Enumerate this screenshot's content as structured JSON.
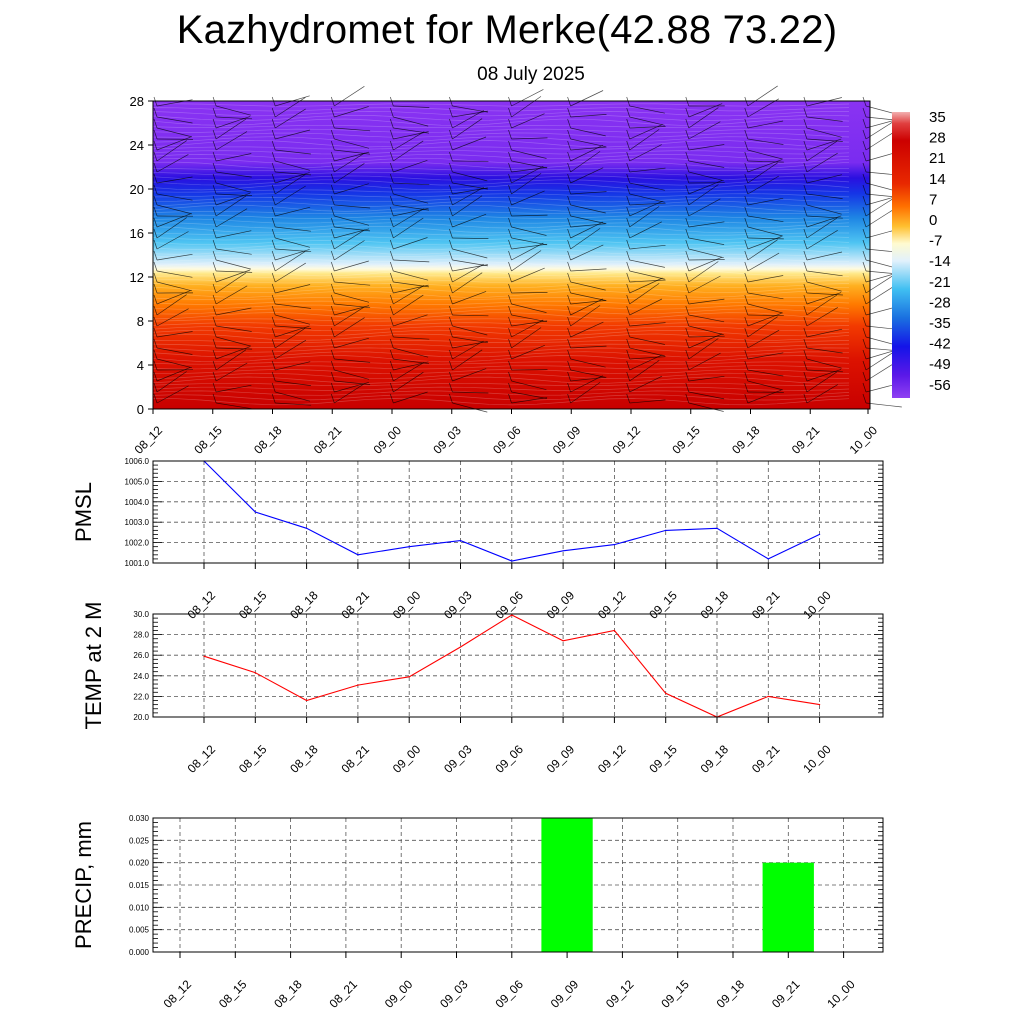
{
  "page": {
    "title": "Kazhydromet for Merke(42.88 73.22)",
    "subtitle": "08 July 2025"
  },
  "chart_data": [
    {
      "type": "heatmap",
      "description_kind": "vertical cross-section",
      "x_ticks": [
        "08_12",
        "08_15",
        "08_18",
        "08_21",
        "09_00",
        "09_03",
        "09_06",
        "09_09",
        "09_12",
        "09_15",
        "09_18",
        "09_21",
        "10_00"
      ],
      "y_ticks": [
        "0",
        "4",
        "8",
        "12",
        "16",
        "20",
        "24",
        "28"
      ],
      "ylim": [
        0,
        28
      ],
      "colorbar_labels": [
        "35",
        "28",
        "21",
        "14",
        "7",
        "0",
        "-7",
        "-14",
        "-21",
        "-28",
        "-35",
        "-42",
        "-49",
        "-56"
      ],
      "colormap_stops": [
        "#f2a0a0",
        "#cc0000",
        "#e63a00",
        "#ff8a00",
        "#ffcf33",
        "#fff9c8",
        "#e7f3ff",
        "#4fc0f0",
        "#1a7ae0",
        "#1a1ae6",
        "#5512e6",
        "#8a30f0"
      ],
      "grid": false
    },
    {
      "type": "line",
      "ylabel": "PMSL",
      "categories": [
        "08_12",
        "08_15",
        "08_18",
        "08_21",
        "09_00",
        "09_03",
        "09_06",
        "09_09",
        "09_12",
        "09_15",
        "09_18",
        "09_21",
        "10_00"
      ],
      "values": [
        1006.0,
        1003.5,
        1002.7,
        1001.4,
        1001.8,
        1002.1,
        1001.1,
        1001.6,
        1001.9,
        1002.6,
        1002.7,
        1001.2,
        1002.4
      ],
      "y_ticks": [
        "1001.0",
        "1002.0",
        "1003.0",
        "1004.0",
        "1005.0",
        "1006.0"
      ],
      "ylim": [
        1001.0,
        1006.0
      ],
      "color": "#0000ff",
      "grid": true
    },
    {
      "type": "line",
      "ylabel": "TEMP at 2 M",
      "categories": [
        "08_12",
        "08_15",
        "08_18",
        "08_21",
        "09_00",
        "09_03",
        "09_06",
        "09_09",
        "09_12",
        "09_15",
        "09_18",
        "09_21",
        "10_00"
      ],
      "values": [
        25.9,
        24.3,
        21.6,
        23.1,
        23.9,
        26.8,
        29.9,
        27.4,
        28.4,
        22.3,
        20.0,
        22.0,
        21.2
      ],
      "y_ticks": [
        "20.0",
        "22.0",
        "24.0",
        "26.0",
        "28.0",
        "30.0"
      ],
      "ylim": [
        20.0,
        30.0
      ],
      "color": "#ff0000",
      "grid": true
    },
    {
      "type": "bar",
      "ylabel": "PRECIP, mm",
      "categories": [
        "08_12",
        "08_15",
        "08_18",
        "08_21",
        "09_00",
        "09_03",
        "09_06",
        "09_09",
        "09_12",
        "09_15",
        "09_18",
        "09_21",
        "10_00"
      ],
      "values": [
        0,
        0,
        0,
        0,
        0,
        0,
        0,
        0.03,
        0,
        0,
        0,
        0.02,
        0
      ],
      "y_ticks": [
        "0.000",
        "0.005",
        "0.010",
        "0.015",
        "0.020",
        "0.025",
        "0.030"
      ],
      "ylim": [
        0,
        0.03
      ],
      "color": "#00ff00",
      "grid": true
    }
  ]
}
